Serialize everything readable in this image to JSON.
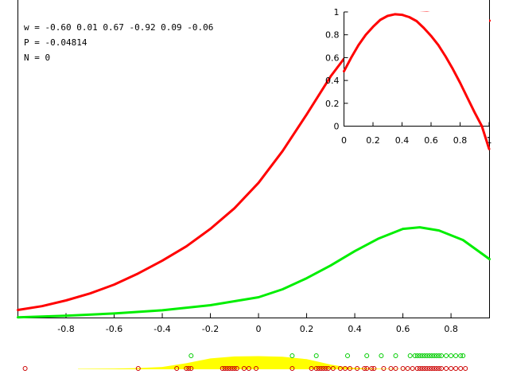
{
  "info_lines": {
    "w": "w = -0.60 0.01 0.67 -0.92 0.09 -0.06",
    "p": "P = -0.04814",
    "n": "N = 0"
  },
  "chart_data": [
    {
      "type": "line",
      "title": "",
      "xlabel": "",
      "ylabel": "",
      "xlim": [
        -1.0,
        0.96
      ],
      "ylim": [
        0,
        1
      ],
      "grid": false,
      "x_ticks": [
        -0.8,
        -0.6,
        -0.4,
        -0.2,
        0,
        0.2,
        0.4,
        0.6,
        0.8
      ],
      "x_tick_labels": [
        "-0.8",
        "-0.6",
        "-0.4",
        "-0.2",
        "0",
        "0.2",
        "0.4",
        "0.6",
        "0.8"
      ],
      "series": [
        {
          "color": "#ff0000",
          "x": [
            -1.0,
            -0.9,
            -0.8,
            -0.7,
            -0.6,
            -0.5,
            -0.4,
            -0.3,
            -0.2,
            -0.1,
            0.0,
            0.1,
            0.2,
            0.3,
            0.4,
            0.5,
            0.6,
            0.7,
            0.8,
            0.9,
            0.96
          ],
          "y": [
            0.025,
            0.037,
            0.055,
            0.077,
            0.105,
            0.14,
            0.18,
            0.225,
            0.28,
            0.345,
            0.425,
            0.525,
            0.64,
            0.76,
            0.86,
            0.925,
            0.956,
            0.96,
            0.95,
            0.94,
            0.935
          ]
        },
        {
          "color": "#00ee00",
          "x": [
            -1.0,
            -0.8,
            -0.6,
            -0.4,
            -0.2,
            0.0,
            0.1,
            0.2,
            0.3,
            0.4,
            0.5,
            0.6,
            0.67,
            0.75,
            0.85,
            0.96
          ],
          "y": [
            0.002,
            0.007,
            0.014,
            0.024,
            0.04,
            0.065,
            0.09,
            0.125,
            0.165,
            0.21,
            0.25,
            0.28,
            0.285,
            0.275,
            0.245,
            0.185
          ]
        }
      ]
    },
    {
      "type": "line",
      "title": "",
      "xlim": [
        0,
        1
      ],
      "ylim": [
        0,
        1
      ],
      "grid": false,
      "x_ticks": [
        0,
        0.2,
        0.4,
        0.6,
        0.8,
        1
      ],
      "x_tick_labels": [
        "0",
        "0.2",
        "0.4",
        "0.6",
        "0.8",
        "1"
      ],
      "y_ticks": [
        0,
        0.2,
        0.4,
        0.6,
        0.8,
        1
      ],
      "y_tick_labels": [
        "0",
        "0.2",
        "0.4",
        "0.6",
        "0.8",
        "1"
      ],
      "series": [
        {
          "color": "#ff0000",
          "x": [
            0.0,
            0.05,
            0.1,
            0.15,
            0.2,
            0.25,
            0.3,
            0.35,
            0.4,
            0.45,
            0.5,
            0.55,
            0.6,
            0.65,
            0.7,
            0.75,
            0.8,
            0.85,
            0.9,
            0.95,
            1.0
          ],
          "y": [
            0.48,
            0.6,
            0.71,
            0.8,
            0.87,
            0.93,
            0.965,
            0.98,
            0.975,
            0.955,
            0.92,
            0.86,
            0.79,
            0.71,
            0.61,
            0.5,
            0.38,
            0.25,
            0.12,
            0.0,
            -0.2
          ]
        }
      ]
    },
    {
      "type": "scatter",
      "title": "",
      "xlim": [
        -1.0,
        0.96
      ],
      "density": {
        "color": "#ffff00",
        "x": [
          -0.75,
          -0.6,
          -0.5,
          -0.4,
          -0.3,
          -0.2,
          -0.1,
          0.0,
          0.1,
          0.2,
          0.25,
          0.3,
          0.35,
          0.4,
          0.5,
          0.6,
          0.7
        ],
        "y": [
          0.03,
          0.05,
          0.09,
          0.17,
          0.45,
          0.8,
          0.95,
          0.97,
          0.93,
          0.75,
          0.55,
          0.35,
          0.2,
          0.1,
          0.04,
          0.015,
          0.0
        ]
      },
      "series": [
        {
          "color": "#00cc00",
          "row": "upper",
          "x": [
            -0.28,
            0.14,
            0.24,
            0.37,
            0.45,
            0.51,
            0.57,
            0.63,
            0.65,
            0.66,
            0.67,
            0.68,
            0.69,
            0.7,
            0.71,
            0.72,
            0.73,
            0.74,
            0.75,
            0.76,
            0.78,
            0.8,
            0.82,
            0.84,
            0.85
          ]
        },
        {
          "color": "#cc0000",
          "row": "lower",
          "x": [
            -0.97,
            -0.5,
            -0.34,
            -0.3,
            -0.29,
            -0.28,
            -0.15,
            -0.14,
            -0.13,
            -0.12,
            -0.11,
            -0.1,
            -0.09,
            -0.06,
            -0.04,
            -0.01,
            0.14,
            0.22,
            0.24,
            0.25,
            0.26,
            0.27,
            0.28,
            0.29,
            0.31,
            0.34,
            0.36,
            0.38,
            0.41,
            0.44,
            0.45,
            0.47,
            0.48,
            0.52,
            0.55,
            0.57,
            0.6,
            0.62,
            0.64,
            0.66,
            0.67,
            0.68,
            0.69,
            0.7,
            0.71,
            0.72,
            0.73,
            0.74,
            0.75,
            0.76,
            0.78,
            0.8,
            0.82,
            0.84,
            0.86
          ]
        }
      ]
    }
  ]
}
